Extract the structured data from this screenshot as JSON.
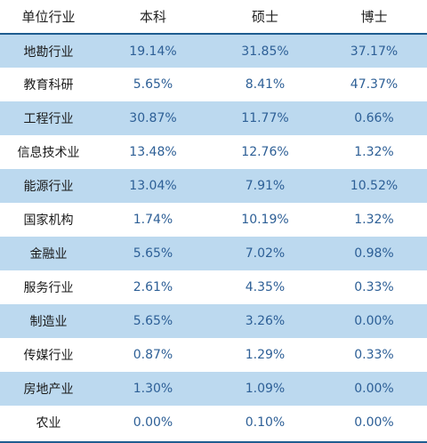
{
  "table": {
    "headers": [
      "单位行业",
      "本科",
      "硕士",
      "博士"
    ],
    "rows": [
      {
        "label": "地勘行业",
        "values": [
          "19.14%",
          "31.85%",
          "37.17%"
        ]
      },
      {
        "label": "教育科研",
        "values": [
          "5.65%",
          "8.41%",
          "47.37%"
        ]
      },
      {
        "label": "工程行业",
        "values": [
          "30.87%",
          "11.77%",
          "0.66%"
        ]
      },
      {
        "label": "信息技术业",
        "values": [
          "13.48%",
          "12.76%",
          "1.32%"
        ]
      },
      {
        "label": "能源行业",
        "values": [
          "13.04%",
          "7.91%",
          "10.52%"
        ]
      },
      {
        "label": "国家机构",
        "values": [
          "1.74%",
          "10.19%",
          "1.32%"
        ]
      },
      {
        "label": "金融业",
        "values": [
          "5.65%",
          "7.02%",
          "0.98%"
        ]
      },
      {
        "label": "服务行业",
        "values": [
          "2.61%",
          "4.35%",
          "0.33%"
        ]
      },
      {
        "label": "制造业",
        "values": [
          "5.65%",
          "3.26%",
          "0.00%"
        ]
      },
      {
        "label": "传媒行业",
        "values": [
          "0.87%",
          "1.29%",
          "0.33%"
        ]
      },
      {
        "label": "房地产业",
        "values": [
          "1.30%",
          "1.09%",
          "0.00%"
        ]
      },
      {
        "label": "农业",
        "values": [
          "0.00%",
          "0.10%",
          "0.00%"
        ]
      }
    ]
  },
  "colors": {
    "stripe": "#bcd9ef",
    "value_text": "#2d5f96",
    "rule": "#1f5d90"
  }
}
